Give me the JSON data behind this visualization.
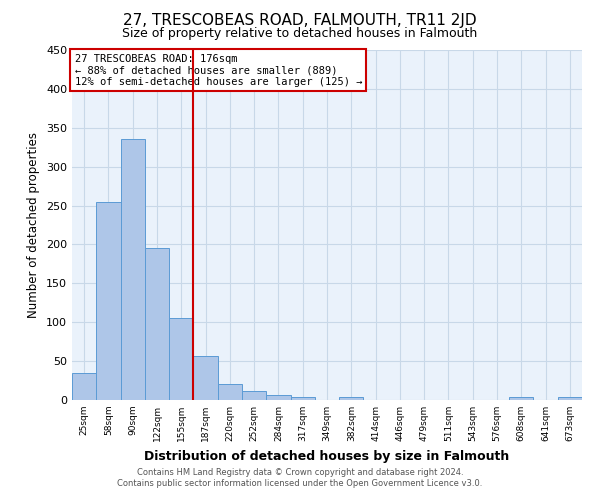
{
  "title": "27, TRESCOBEAS ROAD, FALMOUTH, TR11 2JD",
  "subtitle": "Size of property relative to detached houses in Falmouth",
  "xlabel": "Distribution of detached houses by size in Falmouth",
  "ylabel": "Number of detached properties",
  "bar_labels": [
    "25sqm",
    "58sqm",
    "90sqm",
    "122sqm",
    "155sqm",
    "187sqm",
    "220sqm",
    "252sqm",
    "284sqm",
    "317sqm",
    "349sqm",
    "382sqm",
    "414sqm",
    "446sqm",
    "479sqm",
    "511sqm",
    "543sqm",
    "576sqm",
    "608sqm",
    "641sqm",
    "673sqm"
  ],
  "bar_heights": [
    35,
    255,
    335,
    196,
    105,
    57,
    20,
    11,
    6,
    4,
    0,
    4,
    0,
    0,
    0,
    0,
    0,
    0,
    4,
    0,
    4
  ],
  "bar_color": "#aec6e8",
  "bar_edge_color": "#5b9bd5",
  "bar_width": 1.0,
  "vline_x": 4.5,
  "vline_color": "#cc0000",
  "ylim": [
    0,
    450
  ],
  "yticks": [
    0,
    50,
    100,
    150,
    200,
    250,
    300,
    350,
    400,
    450
  ],
  "annotation_title": "27 TRESCOBEAS ROAD: 176sqm",
  "annotation_line1": "← 88% of detached houses are smaller (889)",
  "annotation_line2": "12% of semi-detached houses are larger (125) →",
  "annotation_box_color": "#ffffff",
  "annotation_box_edge": "#cc0000",
  "grid_color": "#c8d8e8",
  "bg_color": "#eaf2fb",
  "footer1": "Contains HM Land Registry data © Crown copyright and database right 2024.",
  "footer2": "Contains public sector information licensed under the Open Government Licence v3.0.",
  "title_fontsize": 11,
  "subtitle_fontsize": 9,
  "xlabel_fontsize": 9,
  "ylabel_fontsize": 8.5
}
